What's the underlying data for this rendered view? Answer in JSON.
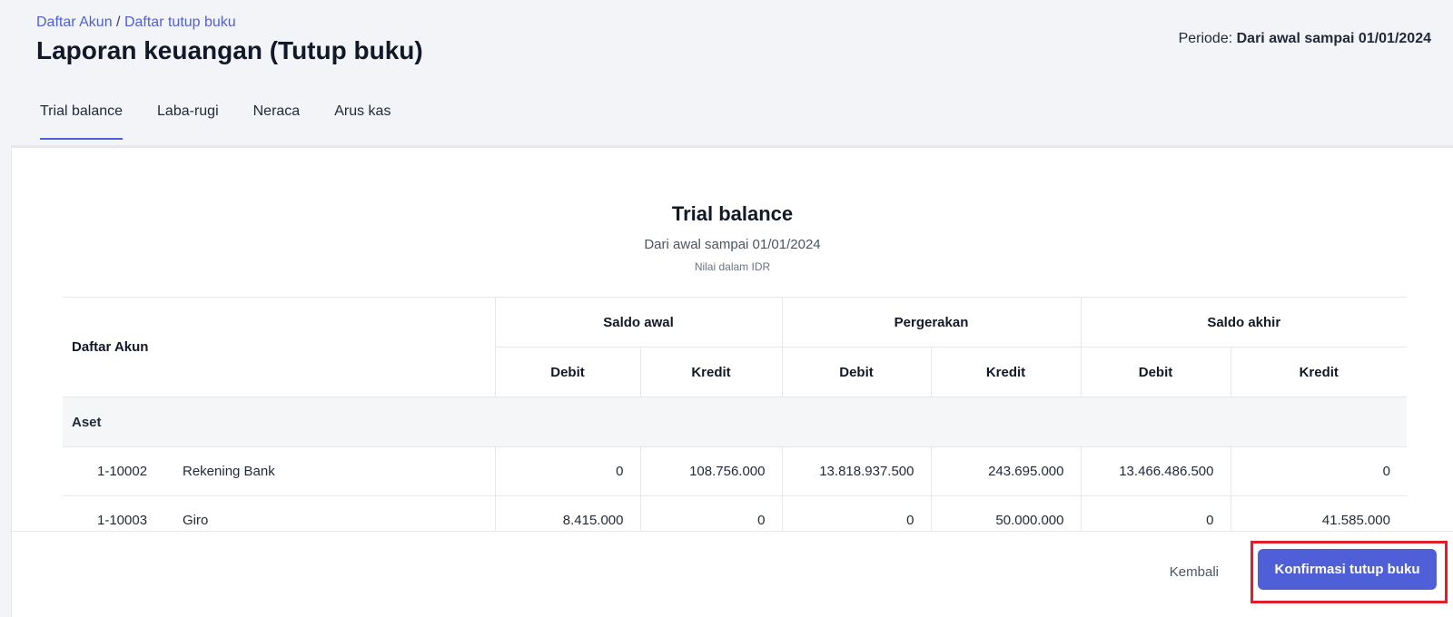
{
  "breadcrumb": {
    "link1": "Daftar Akun",
    "sep": " / ",
    "link2": "Daftar tutup buku"
  },
  "page_title": "Laporan keuangan (Tutup buku)",
  "periode": {
    "label": "Periode: ",
    "value": "Dari awal sampai 01/01/2024"
  },
  "tabs": [
    {
      "label": "Trial balance",
      "active": true
    },
    {
      "label": "Laba-rugi"
    },
    {
      "label": "Neraca"
    },
    {
      "label": "Arus kas"
    }
  ],
  "report": {
    "title": "Trial balance",
    "subtitle": "Dari awal sampai 01/01/2024",
    "unit": "Nilai dalam IDR"
  },
  "table": {
    "account_header": "Daftar Akun",
    "groups": [
      "Saldo awal",
      "Pergerakan",
      "Saldo akhir"
    ],
    "debit": "Debit",
    "kredit": "Kredit",
    "section": "Aset",
    "rows": [
      {
        "code": "1-10002",
        "name": "Rekening Bank",
        "values": [
          "0",
          "108.756.000",
          "13.818.937.500",
          "243.695.000",
          "13.466.486.500",
          "0"
        ]
      },
      {
        "code": "1-10003",
        "name": "Giro",
        "values": [
          "8.415.000",
          "0",
          "0",
          "50.000.000",
          "0",
          "41.585.000"
        ]
      }
    ]
  },
  "footer": {
    "back_label": "Kembali",
    "confirm_label": "Konfirmasi tutup buku"
  },
  "colors": {
    "accent": "#4f5fd8",
    "highlight": "#e11d2a"
  }
}
